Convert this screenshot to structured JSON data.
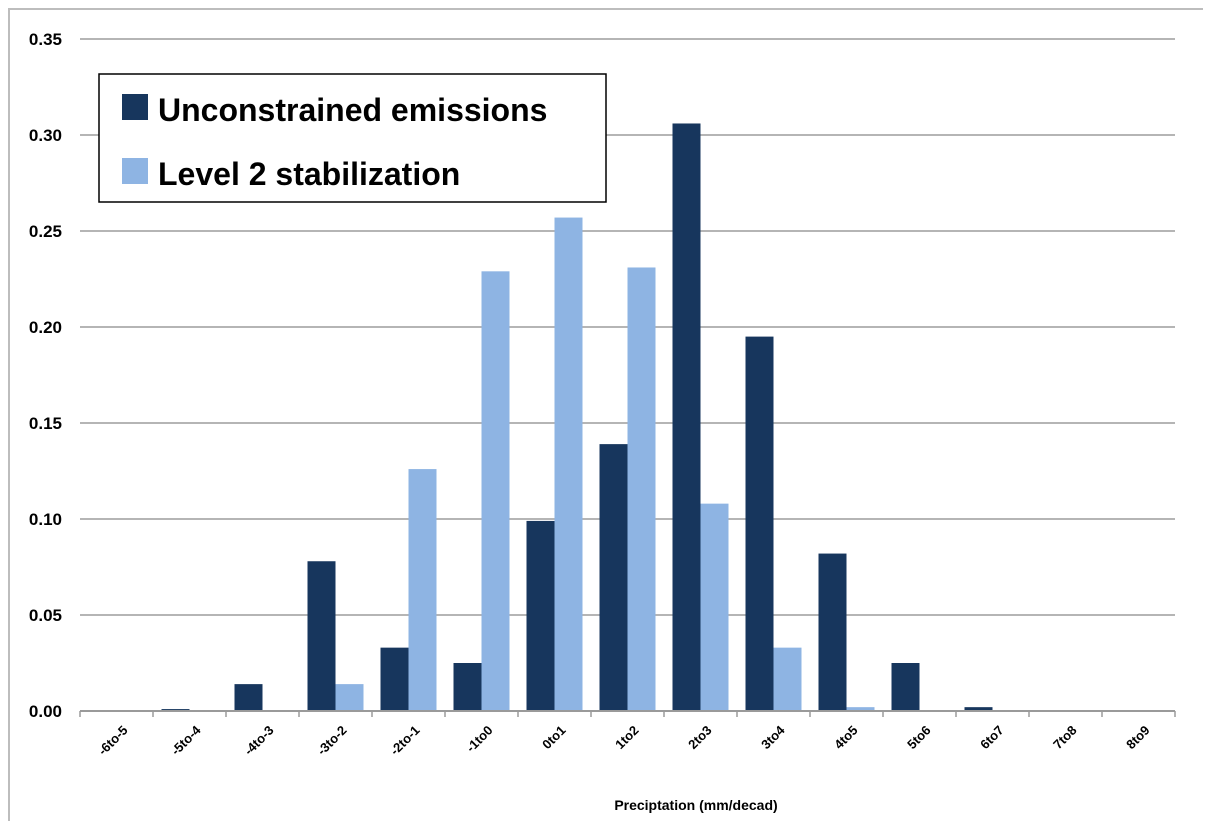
{
  "chart_data": {
    "type": "bar",
    "title": "",
    "xlabel": "Preciptation (mm/decad)",
    "ylabel": "",
    "ylim": [
      0,
      0.35
    ],
    "yticks": [
      "0.00",
      "0.05",
      "0.10",
      "0.15",
      "0.20",
      "0.25",
      "0.30",
      "0.35"
    ],
    "grid": true,
    "legend_position": "top-left",
    "categories": [
      "-6to-5",
      "-5to-4",
      "-4to-3",
      "-3to-2",
      "-2to-1",
      "-1to0",
      "0to1",
      "1to2",
      "2to3",
      "3to4",
      "4to5",
      "5to6",
      "6to7",
      "7to8",
      "8to9"
    ],
    "series": [
      {
        "name": "Unconstrained emissions",
        "color": "#17365d",
        "values": [
          0.0,
          0.001,
          0.014,
          0.078,
          0.033,
          0.025,
          0.099,
          0.139,
          0.306,
          0.195,
          0.082,
          0.025,
          0.002,
          0.0,
          0.0
        ]
      },
      {
        "name": "Level 2 stabilization",
        "color": "#8eb4e3",
        "values": [
          0.0,
          0.0,
          0.0,
          0.014,
          0.126,
          0.229,
          0.257,
          0.231,
          0.108,
          0.033,
          0.002,
          0.0,
          0.0,
          0.0,
          0.0
        ]
      }
    ]
  }
}
